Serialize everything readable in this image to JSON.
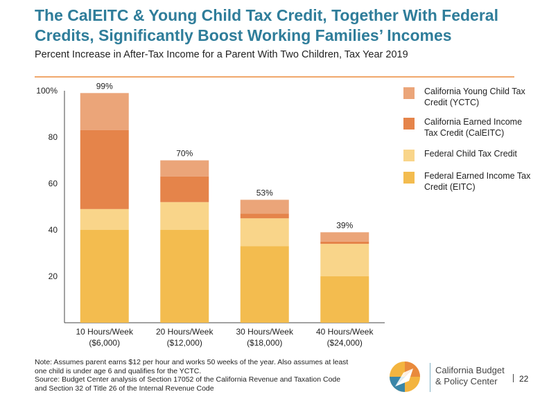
{
  "header": {
    "title": "The CalEITC & Young Child Tax Credit, Together With Federal Credits, Significantly Boost Working Families’ Incomes",
    "subtitle": "Percent Increase in After-Tax Income for a Parent With Two Children, Tax Year 2019"
  },
  "chart_data": {
    "type": "bar",
    "stacked": true,
    "categories": [
      "10 Hours/Week\n($6,000)",
      "20 Hours/Week\n($12,000)",
      "30 Hours/Week\n($18,000)",
      "40 Hours/Week\n($24,000)"
    ],
    "series": [
      {
        "name": "Federal Earned Income Tax Credit (EITC)",
        "color": "#f3bc4f",
        "values": [
          40,
          40,
          33,
          20
        ]
      },
      {
        "name": "Federal Child Tax Credit",
        "color": "#f9d58a",
        "values": [
          9,
          12,
          12,
          14
        ]
      },
      {
        "name": "California Earned Income Tax Credit (CalEITC)",
        "color": "#e5844a",
        "values": [
          34,
          11,
          2,
          1
        ]
      },
      {
        "name": "California Young Child Tax Credit (YCTC)",
        "color": "#eba579",
        "values": [
          16,
          7,
          6,
          4
        ]
      }
    ],
    "totals": [
      "99%",
      "70%",
      "53%",
      "39%"
    ],
    "yticks": [
      "100%",
      "80",
      "60",
      "40",
      "20"
    ],
    "ytick_values": [
      100,
      80,
      60,
      40,
      20
    ],
    "ylim": [
      0,
      100
    ],
    "xlabel": "",
    "ylabel": "",
    "legend_position": "right"
  },
  "legend": [
    {
      "label": "California Young Child Tax Credit (YCTC)",
      "color": "#eba579"
    },
    {
      "label": "California Earned Income Tax Credit (CalEITC)",
      "color": "#e5844a"
    },
    {
      "label": "Federal Child Tax Credit",
      "color": "#f9d58a"
    },
    {
      "label": "Federal Earned Income Tax Credit (EITC)",
      "color": "#f3bc4f"
    }
  ],
  "footer": {
    "note": "Note: Assumes parent earns $12 per hour and works 50 weeks of the year. Also assumes at least\none child is under age 6 and qualifies for the YCTC.",
    "source": "Source: Budget Center analysis of Section 17052 of the California Revenue and Taxation Code\nand Section 32 of Title 26 of the Internal Revenue Code",
    "logo_line1": "California Budget",
    "logo_line2": "& Policy Center",
    "page_number": "22",
    "logo_icon": "compass-arrow-logo"
  }
}
